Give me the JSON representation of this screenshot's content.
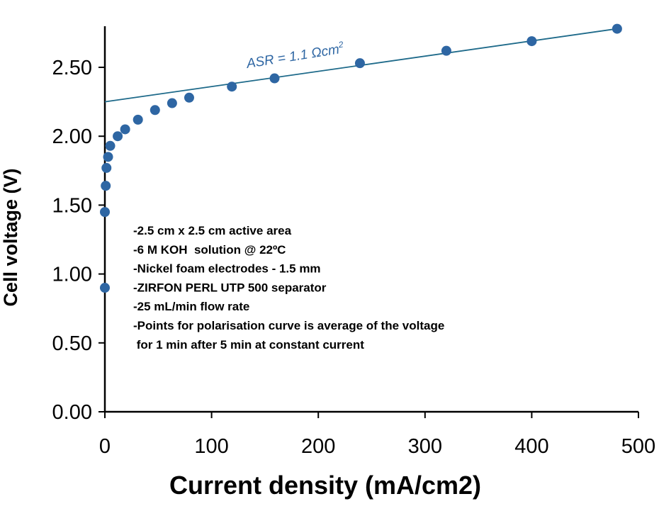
{
  "chart_data": {
    "type": "scatter",
    "title": "",
    "xlabel": "Current density (mA/cm2)",
    "ylabel": "Cell voltage (V)",
    "xlim": [
      0,
      500
    ],
    "ylim": [
      0,
      2.8
    ],
    "x_ticks": [
      0,
      100,
      200,
      300,
      400,
      500
    ],
    "x_tick_labels": [
      "0",
      "100",
      "200",
      "300",
      "400",
      "500"
    ],
    "y_ticks": [
      0,
      0.5,
      1.0,
      1.5,
      2.0,
      2.5
    ],
    "y_tick_labels": [
      "0.00",
      "0.50",
      "1.00",
      "1.50",
      "2.00",
      "2.50"
    ],
    "grid": false,
    "legend": "none",
    "series": [
      {
        "points": [
          {
            "x": 0,
            "y": 0.9
          },
          {
            "x": 0,
            "y": 1.45
          },
          {
            "x": 0.8,
            "y": 1.64
          },
          {
            "x": 1.5,
            "y": 1.77
          },
          {
            "x": 3,
            "y": 1.85
          },
          {
            "x": 5,
            "y": 1.93
          },
          {
            "x": 12,
            "y": 2.0
          },
          {
            "x": 19,
            "y": 2.05
          },
          {
            "x": 31,
            "y": 2.12
          },
          {
            "x": 47,
            "y": 2.19
          },
          {
            "x": 63,
            "y": 2.24
          },
          {
            "x": 79,
            "y": 2.28
          },
          {
            "x": 119,
            "y": 2.36
          },
          {
            "x": 159,
            "y": 2.42
          },
          {
            "x": 239,
            "y": 2.53
          },
          {
            "x": 320,
            "y": 2.62
          },
          {
            "x": 400,
            "y": 2.69
          },
          {
            "x": 480,
            "y": 2.78
          }
        ],
        "color": "#2e66a3"
      }
    ],
    "fit_line": {
      "x": [
        0,
        480
      ],
      "y": [
        2.25,
        2.78
      ],
      "color": "#1e6a8a"
    },
    "annotations": {
      "asr_label": "ASR = 1.1 Ωcm",
      "asr_superscript": "2",
      "notes": [
        "-2.5 cm x 2.5 cm active area",
        "-6 M KOH  solution @ 22ºC",
        "-Nickel foam electrodes - 1.5 mm",
        "-ZIRFON PERL UTP 500 separator",
        "-25 mL/min flow rate",
        "-Points for polarisation curve is average of the voltage",
        " for 1 min after 5 min at constant current"
      ]
    },
    "colors": {
      "marker": "#2e66a3",
      "fit_line": "#1e6a8a",
      "annotation": "#2e66a3",
      "axis": "#000000"
    }
  }
}
